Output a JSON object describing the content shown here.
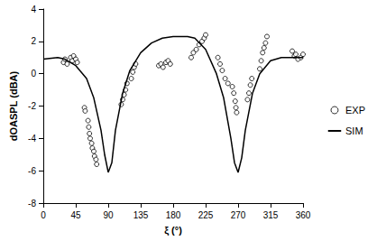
{
  "chart_data": {
    "type": "scatter",
    "x_label": "ξ (°)",
    "y_label": "dOASPL (dBA)",
    "xlim": [
      0,
      360
    ],
    "xticks": [
      0,
      45,
      90,
      135,
      180,
      225,
      270,
      315,
      360
    ],
    "ylim": [
      -8,
      4
    ],
    "yticks": [
      -8,
      -6,
      -4,
      -2,
      0,
      2,
      4
    ],
    "grid": false,
    "legend": "right",
    "series": [
      {
        "name": "EXP",
        "type": "scatter",
        "marker": "circle-open",
        "color": "#000000",
        "x": [
          28,
          30,
          33,
          38,
          40,
          42,
          45,
          47,
          57,
          58,
          62,
          63,
          64,
          65,
          67,
          68,
          70,
          71,
          73,
          74,
          108,
          110,
          112,
          114,
          116,
          122,
          124,
          126,
          128,
          160,
          163,
          166,
          170,
          173,
          176,
          205,
          208,
          212,
          216,
          220,
          223,
          225,
          242,
          245,
          248,
          252,
          256,
          262,
          264,
          266,
          267,
          268,
          283,
          285,
          287,
          289,
          300,
          302,
          304,
          306,
          308,
          310,
          345,
          348,
          350,
          353,
          357,
          360
        ],
        "values": [
          0.7,
          0.9,
          0.6,
          1.0,
          0.8,
          1.1,
          0.9,
          0.7,
          -2.1,
          -2.3,
          -2.9,
          -3.3,
          -3.7,
          -4.0,
          -4.3,
          -4.6,
          -4.8,
          -5.1,
          -5.3,
          -5.6,
          -1.9,
          -1.6,
          -1.3,
          -1.0,
          -0.6,
          -0.3,
          0.1,
          0.4,
          0.6,
          0.5,
          0.6,
          0.4,
          0.7,
          0.8,
          0.6,
          1.0,
          1.3,
          1.5,
          1.8,
          2.0,
          2.2,
          2.4,
          1.0,
          0.6,
          0.2,
          -0.3,
          -0.6,
          -0.8,
          -1.2,
          -1.7,
          -2.1,
          -2.4,
          -1.6,
          -1.2,
          -0.7,
          -0.3,
          0.3,
          0.8,
          1.3,
          1.6,
          1.9,
          2.3,
          1.4,
          1.1,
          1.2,
          0.9,
          1.0,
          1.2
        ]
      },
      {
        "name": "SIM",
        "type": "line",
        "line_style": "solid",
        "color": "#000000",
        "x": [
          0,
          20,
          30,
          45,
          60,
          70,
          80,
          85,
          90,
          95,
          100,
          110,
          120,
          135,
          150,
          165,
          180,
          200,
          210,
          225,
          240,
          250,
          260,
          265,
          270,
          275,
          280,
          290,
          300,
          315,
          330,
          345,
          360
        ],
        "values": [
          0.9,
          1.0,
          0.9,
          0.5,
          -0.3,
          -1.5,
          -3.5,
          -5.0,
          -6.1,
          -5.5,
          -3.5,
          -1.2,
          0.2,
          1.3,
          1.9,
          2.2,
          2.3,
          2.3,
          2.2,
          1.5,
          0.0,
          -1.5,
          -4.0,
          -5.5,
          -6.1,
          -5.2,
          -3.5,
          -1.2,
          0.0,
          0.8,
          1.0,
          1.0,
          1.0
        ]
      }
    ]
  }
}
